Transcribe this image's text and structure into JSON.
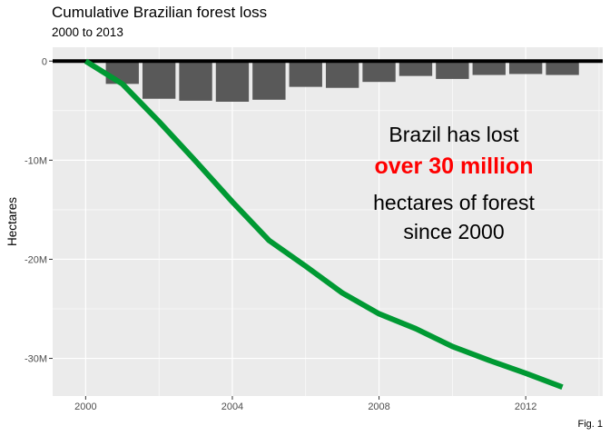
{
  "chart_data": {
    "type": "bar",
    "title": "Cumulative Brazilian forest loss",
    "subtitle": "2000 to 2013",
    "xlabel": "",
    "ylabel": "Hectares",
    "caption": "Fig. 1",
    "xlim": [
      1999.1,
      2014.1
    ],
    "ylim": [
      -33800000,
      1400000
    ],
    "x_ticks": [
      {
        "value": 2000,
        "label": "2000"
      },
      {
        "value": 2004,
        "label": "2004"
      },
      {
        "value": 2008,
        "label": "2008"
      },
      {
        "value": 2012,
        "label": "2012"
      }
    ],
    "y_ticks": [
      {
        "value": 0,
        "label": "0"
      },
      {
        "value": -10000000,
        "label": "-10M"
      },
      {
        "value": -20000000,
        "label": "-20M"
      },
      {
        "value": -30000000,
        "label": "-30M"
      }
    ],
    "grid": true,
    "zero_line": true,
    "series": [
      {
        "type": "bar",
        "color": "#595959",
        "x": [
          2001,
          2002,
          2003,
          2004,
          2005,
          2006,
          2007,
          2008,
          2009,
          2010,
          2011,
          2012,
          2013
        ],
        "values": [
          -2300000,
          -3800000,
          -4000000,
          -4100000,
          -3900000,
          -2600000,
          -2700000,
          -2100000,
          -1500000,
          -1800000,
          -1400000,
          -1300000,
          -1400000
        ]
      },
      {
        "type": "line",
        "color": "#009933",
        "x": [
          2000,
          2001,
          2002,
          2003,
          2004,
          2005,
          2006,
          2007,
          2008,
          2009,
          2010,
          2011,
          2012,
          2013
        ],
        "values": [
          0,
          -2300000,
          -6100000,
          -10100000,
          -14200000,
          -18100000,
          -20700000,
          -23400000,
          -25500000,
          -27000000,
          -28800000,
          -30200000,
          -31500000,
          -32900000
        ]
      }
    ],
    "annotation": {
      "line1": "Brazil has lost",
      "highlight": "over 30 million",
      "line3": "hectares of forest",
      "line4": "since 2000",
      "highlight_color": "#ff0000"
    }
  }
}
